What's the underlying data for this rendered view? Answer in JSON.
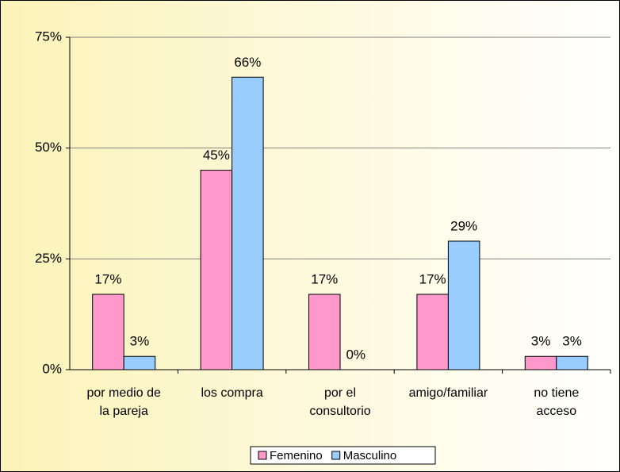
{
  "chart_data": {
    "type": "bar",
    "categories": [
      "por medio de la pareja",
      "los compra",
      "por el consultorio",
      "amigo/familiar",
      "no tiene acceso"
    ],
    "series": [
      {
        "name": "Femenino",
        "color": "#ff99cc",
        "values": [
          17,
          45,
          17,
          17,
          3
        ],
        "value_labels": [
          "17%",
          "45%",
          "17%",
          "17%",
          "3%"
        ]
      },
      {
        "name": "Masculino",
        "color": "#99ccff",
        "values": [
          3,
          66,
          0,
          29,
          3
        ],
        "value_labels": [
          "3%",
          "66%",
          "0%",
          "29%",
          "3%"
        ]
      }
    ],
    "ylim": [
      0,
      75
    ],
    "yticks": [
      {
        "value": 0,
        "label": "0%"
      },
      {
        "value": 25,
        "label": "25%"
      },
      {
        "value": 50,
        "label": "50%"
      },
      {
        "value": 75,
        "label": "75%"
      }
    ],
    "grid": true,
    "legend": "bottom"
  }
}
